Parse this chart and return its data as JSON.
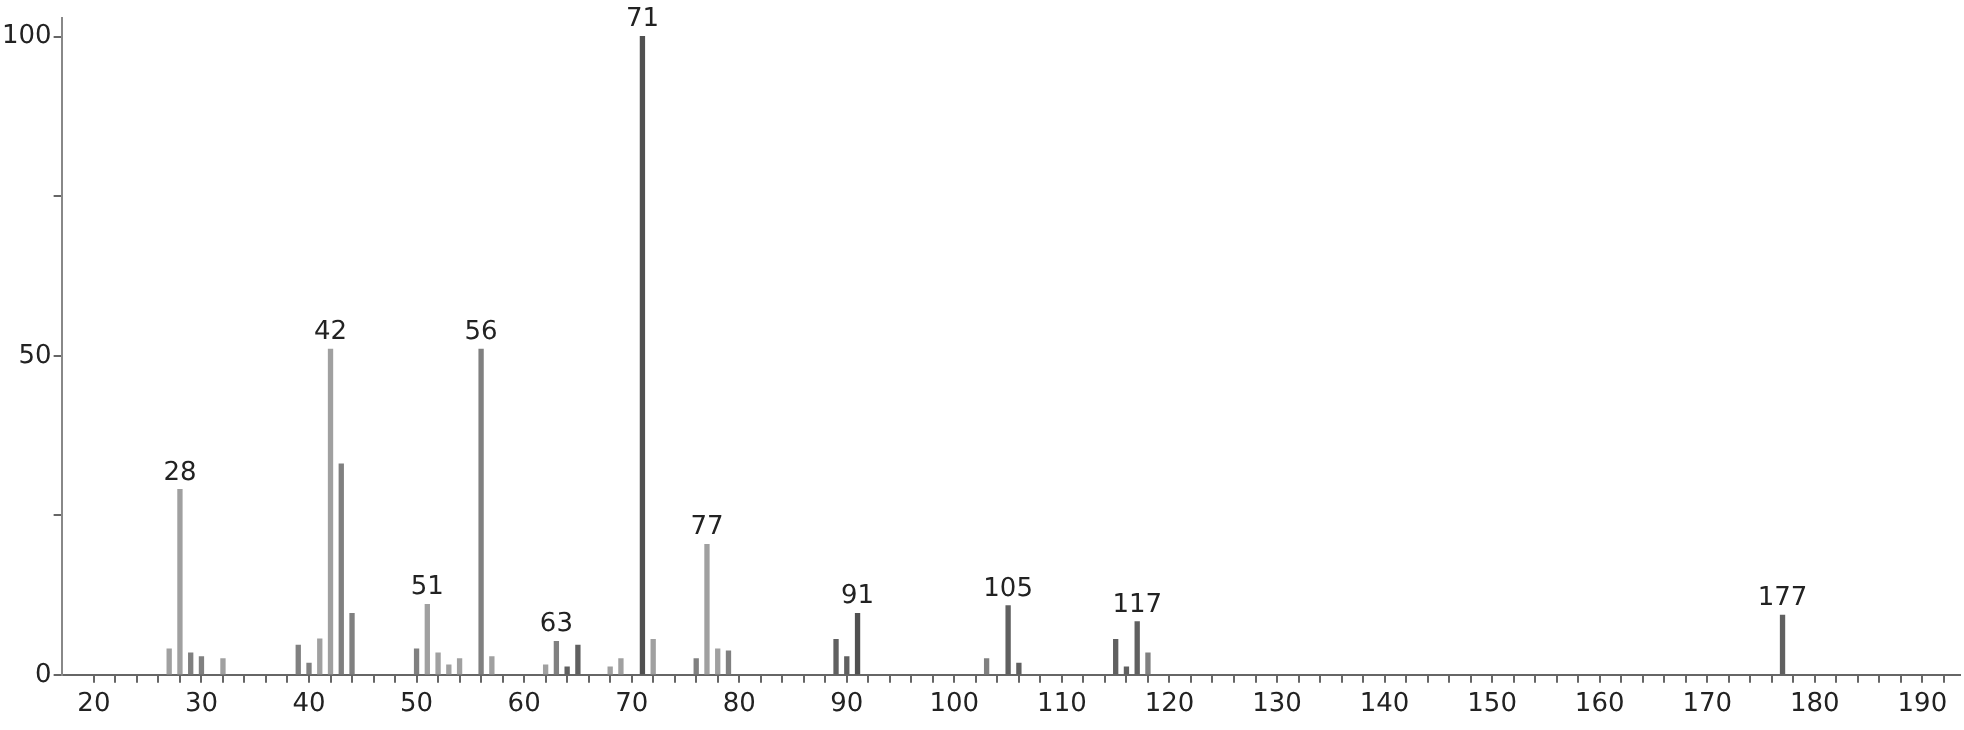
{
  "chart_data": {
    "type": "bar",
    "x": [
      27,
      28,
      29,
      30,
      32,
      39,
      40,
      41,
      42,
      43,
      44,
      50,
      51,
      52,
      53,
      54,
      56,
      57,
      62,
      63,
      64,
      65,
      68,
      69,
      71,
      72,
      76,
      77,
      78,
      79,
      89,
      90,
      91,
      103,
      105,
      106,
      115,
      116,
      117,
      118,
      177
    ],
    "values": [
      4,
      29,
      3.4,
      2.8,
      2.5,
      4.6,
      1.8,
      5.6,
      51,
      33,
      9.6,
      4,
      11,
      3.4,
      1.5,
      2.5,
      51,
      2.8,
      1.5,
      5.2,
      1.2,
      4.6,
      1.2,
      2.5,
      100,
      5.5,
      2.5,
      20.4,
      4,
      3.7,
      5.5,
      2.8,
      9.6,
      2.5,
      10.8,
      1.8,
      5.5,
      1.2,
      8.3,
      3.4,
      9.3
    ],
    "colors": [
      "#a0a0a0",
      "#a0a0a0",
      "#808080",
      "#808080",
      "#a0a0a0",
      "#808080",
      "#808080",
      "#a0a0a0",
      "#a0a0a0",
      "#808080",
      "#808080",
      "#808080",
      "#a0a0a0",
      "#a0a0a0",
      "#a0a0a0",
      "#a0a0a0",
      "#808080",
      "#a0a0a0",
      "#a0a0a0",
      "#808080",
      "#606060",
      "#606060",
      "#a0a0a0",
      "#a0a0a0",
      "#505050",
      "#a0a0a0",
      "#808080",
      "#a0a0a0",
      "#a0a0a0",
      "#808080",
      "#606060",
      "#606060",
      "#505050",
      "#808080",
      "#606060",
      "#606060",
      "#606060",
      "#606060",
      "#606060",
      "#808080",
      "#606060"
    ],
    "xlim": [
      17,
      193.5
    ],
    "xticks": [
      20,
      {
        "value": 22,
        "label": null
      },
      {
        "value": 24,
        "label": null
      },
      {
        "value": 26,
        "label": null
      },
      {
        "value": 28,
        "label": null
      },
      30,
      {
        "value": 32,
        "label": null
      },
      {
        "value": 34,
        "label": null
      },
      {
        "value": 36,
        "label": null
      },
      {
        "value": 38,
        "label": null
      },
      40,
      {
        "value": 42,
        "label": null
      },
      {
        "value": 44,
        "label": null
      },
      {
        "value": 46,
        "label": null
      },
      {
        "value": 48,
        "label": null
      },
      50,
      {
        "value": 52,
        "label": null
      },
      {
        "value": 54,
        "label": null
      },
      {
        "value": 56,
        "label": null
      },
      {
        "value": 58,
        "label": null
      },
      60,
      {
        "value": 62,
        "label": null
      },
      {
        "value": 64,
        "label": null
      },
      {
        "value": 66,
        "label": null
      },
      {
        "value": 68,
        "label": null
      },
      70,
      {
        "value": 72,
        "label": null
      },
      {
        "value": 74,
        "label": null
      },
      {
        "value": 76,
        "label": null
      },
      {
        "value": 78,
        "label": null
      },
      80,
      {
        "value": 82,
        "label": null
      },
      {
        "value": 84,
        "label": null
      },
      {
        "value": 86,
        "label": null
      },
      {
        "value": 88,
        "label": null
      },
      90,
      {
        "value": 92,
        "label": null
      },
      {
        "value": 94,
        "label": null
      },
      {
        "value": 96,
        "label": null
      },
      {
        "value": 98,
        "label": null
      },
      100,
      {
        "value": 102,
        "label": null
      },
      {
        "value": 104,
        "label": null
      },
      {
        "value": 106,
        "label": null
      },
      {
        "value": 108,
        "label": null
      },
      110,
      {
        "value": 112,
        "label": null
      },
      {
        "value": 114,
        "label": null
      },
      {
        "value": 116,
        "label": null
      },
      {
        "value": 118,
        "label": null
      },
      120,
      {
        "value": 122,
        "label": null
      },
      {
        "value": 124,
        "label": null
      },
      {
        "value": 126,
        "label": null
      },
      {
        "value": 128,
        "label": null
      },
      130,
      {
        "value": 132,
        "label": null
      },
      {
        "value": 134,
        "label": null
      },
      {
        "value": 136,
        "label": null
      },
      {
        "value": 138,
        "label": null
      },
      140,
      {
        "value": 142,
        "label": null
      },
      {
        "value": 144,
        "label": null
      },
      {
        "value": 146,
        "label": null
      },
      {
        "value": 148,
        "label": null
      },
      150,
      {
        "value": 152,
        "label": null
      },
      {
        "value": 154,
        "label": null
      },
      {
        "value": 156,
        "label": null
      },
      {
        "value": 158,
        "label": null
      },
      160,
      {
        "value": 162,
        "label": null
      },
      {
        "value": 164,
        "label": null
      },
      {
        "value": 166,
        "label": null
      },
      {
        "value": 168,
        "label": null
      },
      170,
      {
        "value": 172,
        "label": null
      },
      {
        "value": 174,
        "label": null
      },
      {
        "value": 176,
        "label": null
      },
      {
        "value": 178,
        "label": null
      },
      180,
      {
        "value": 182,
        "label": null
      },
      {
        "value": 184,
        "label": null
      },
      {
        "value": 186,
        "label": null
      },
      {
        "value": 188,
        "label": null
      },
      190,
      {
        "value": 192,
        "label": null
      }
    ],
    "ylim": [
      0,
      103
    ],
    "yticks": [
      0,
      {
        "value": 25,
        "label": null
      },
      50,
      {
        "value": 75,
        "label": null
      },
      100
    ],
    "annotations": [
      {
        "text": "28",
        "x": 28,
        "y": 29
      },
      {
        "text": "42",
        "x": 42,
        "y": 51
      },
      {
        "text": "51",
        "x": 51,
        "y": 11
      },
      {
        "text": "56",
        "x": 56,
        "y": 51
      },
      {
        "text": "63",
        "x": 63,
        "y": 5.2
      },
      {
        "text": "71",
        "x": 71,
        "y": 100
      },
      {
        "text": "77",
        "x": 77,
        "y": 20.4
      },
      {
        "text": "91",
        "x": 91,
        "y": 9.6
      },
      {
        "text": "105",
        "x": 105,
        "y": 10.8
      },
      {
        "text": "117",
        "x": 117,
        "y": 8.3
      },
      {
        "text": "177",
        "x": 177,
        "y": 9.3
      }
    ],
    "grid": false,
    "legend": false
  }
}
